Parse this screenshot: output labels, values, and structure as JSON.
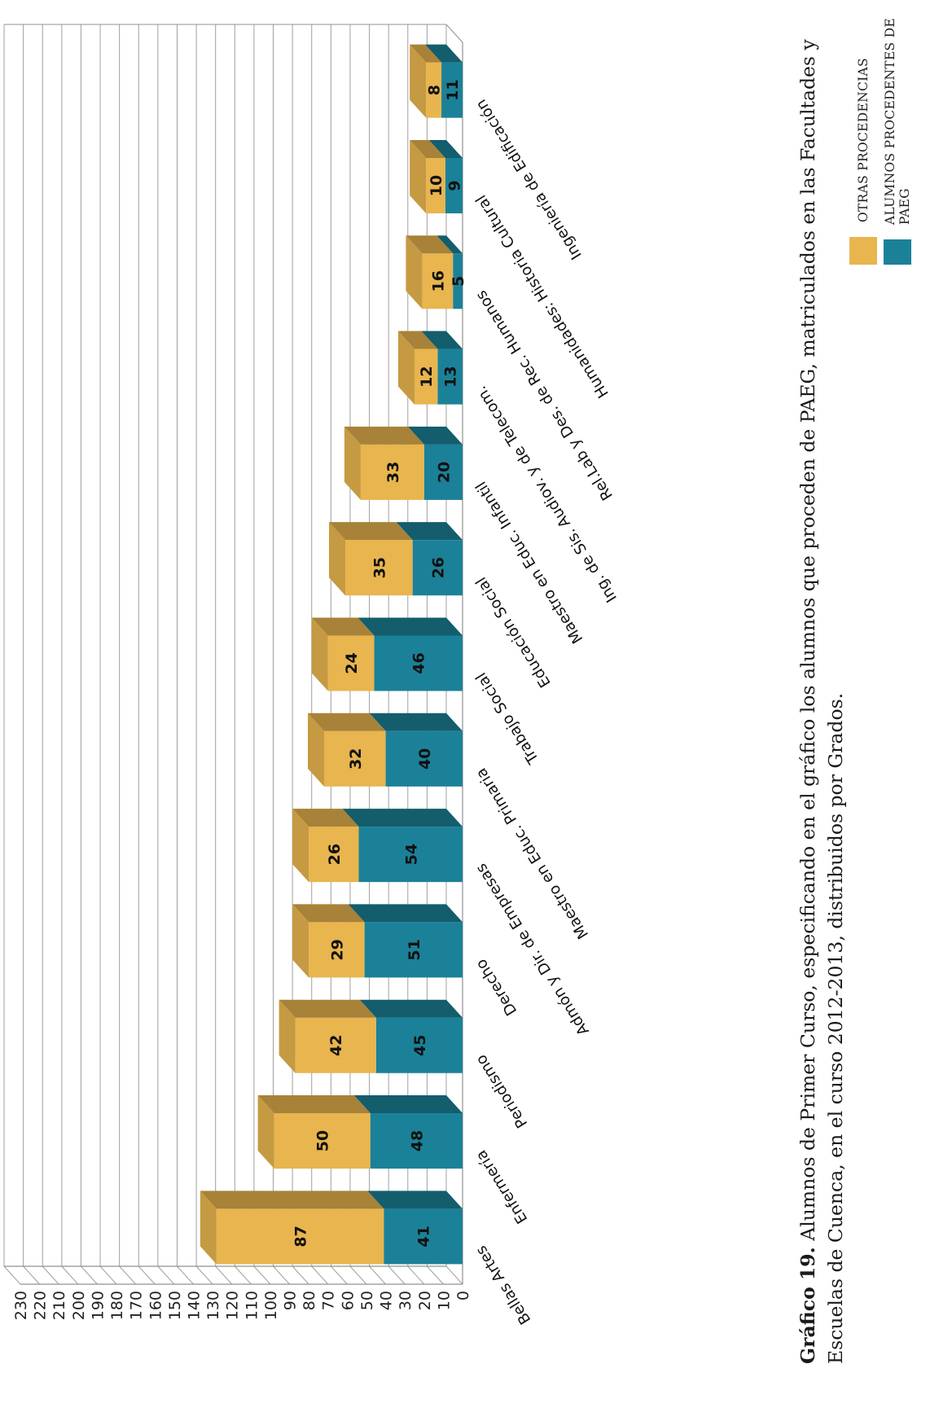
{
  "chart_data": {
    "type": "bar",
    "stacked": true,
    "categories": [
      "Bellas Artes",
      "Enfermería",
      "Periodismo",
      "Derecho",
      "Admón y Dir. de Empresas",
      "Maestro en Educ. Primaria",
      "Trabajo Social",
      "Educación Social",
      "Maestro en Educ. Infantil",
      "Ing. de Sis. Audiov. y de Telecom.",
      "Rel.Lab y Des. de Rec. Humanos",
      "Humanidades: Historia Cultural",
      "Ingeniería de Edificación"
    ],
    "series": [
      {
        "name": "ALUMNOS PROCEDENTES DE PAEG",
        "color": "#1b8198",
        "values": [
          41,
          48,
          45,
          51,
          54,
          40,
          46,
          26,
          20,
          13,
          5,
          9,
          11
        ]
      },
      {
        "name": "OTRAS PROCEDENCIAS",
        "color": "#e8b54e",
        "values": [
          87,
          50,
          42,
          29,
          26,
          32,
          24,
          35,
          33,
          12,
          16,
          10,
          8
        ]
      }
    ],
    "y_ticks": [
      0,
      10,
      20,
      30,
      40,
      50,
      60,
      70,
      80,
      90,
      100,
      110,
      120,
      130,
      140,
      150,
      160,
      170,
      180,
      190,
      200,
      210,
      220,
      230
    ],
    "ylim": [
      0,
      230
    ],
    "grid": true,
    "legend_position": "right",
    "caption": {
      "label": "Gráfico 19.",
      "text": " Alumnos de Primer Curso, especificando en el gráfico los alumnos que proceden de PAEG, matriculados en las Facultades y Escuelas de Cuenca, en el curso 2012-2013, distribuidos por Grados."
    }
  }
}
